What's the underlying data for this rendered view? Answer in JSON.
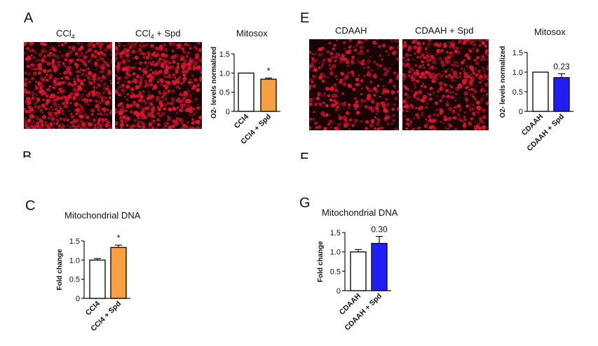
{
  "panels": {
    "A": "A",
    "B": "B",
    "C": "C",
    "E": "E",
    "F": "F",
    "G": "G"
  },
  "images": {
    "A_left_label": "CCl4",
    "A_right_label": "CCl4 + Spd",
    "E_left_label": "CDAAH",
    "E_right_label": "CDAAH + Spd"
  },
  "colors": {
    "orange": "#f7a041",
    "blue": "#1f1ff5",
    "fluor": "#e0162f"
  },
  "chart_data": [
    {
      "id": "A-mitosox",
      "type": "bar",
      "title": "Mitosox",
      "ylabel": "O2- levels normalized",
      "categories": [
        "CCl4",
        "CCl4 + Spd"
      ],
      "values": [
        1.0,
        0.84
      ],
      "errors": [
        0,
        0.03
      ],
      "ylim": [
        0,
        1.5
      ],
      "yticks": [
        0,
        0.5,
        1.0,
        1.5
      ],
      "ytick_labels": [
        "0",
        "0.5",
        "1.0",
        "1.5"
      ],
      "annotation": "*",
      "bar_colors": [
        "#ffffff",
        "#f7a041"
      ]
    },
    {
      "id": "E-mitosox",
      "type": "bar",
      "title": "Mitosox",
      "ylabel": "O2- levels normalized",
      "categories": [
        "CDAAH",
        "CDAAH + Spd"
      ],
      "values": [
        1.0,
        0.86
      ],
      "errors": [
        0,
        0.1
      ],
      "ylim": [
        0,
        1.5
      ],
      "yticks": [
        0,
        0.5,
        1.0,
        1.5
      ],
      "ytick_labels": [
        "0",
        "0.5",
        "1.0",
        "1.5"
      ],
      "annotation": "0.23",
      "bar_colors": [
        "#ffffff",
        "#1f1ff5"
      ]
    },
    {
      "id": "C-mtdna",
      "type": "bar",
      "title": "Mitochondrial DNA",
      "ylabel": "Fold change",
      "categories": [
        "CCl4",
        "CCl4 + Spd"
      ],
      "values": [
        1.0,
        1.33
      ],
      "errors": [
        0.04,
        0.06
      ],
      "ylim": [
        0,
        1.5
      ],
      "yticks": [
        0,
        0.5,
        1.0,
        1.5
      ],
      "ytick_labels": [
        "0",
        "0.5",
        "1.0",
        "1.5"
      ],
      "annotation": "*",
      "bar_colors": [
        "#ffffff",
        "#f7a041"
      ]
    },
    {
      "id": "G-mtdna",
      "type": "bar",
      "title": "Mitochondrial DNA",
      "ylabel": "Fold change",
      "categories": [
        "CDAAH",
        "CDAAH + Spd"
      ],
      "values": [
        1.0,
        1.22
      ],
      "errors": [
        0.06,
        0.18
      ],
      "ylim": [
        0,
        1.5
      ],
      "yticks": [
        0,
        0.5,
        1.0,
        1.5
      ],
      "ytick_labels": [
        "0",
        "0.5",
        "1.0",
        "1.5"
      ],
      "annotation": "0.30",
      "bar_colors": [
        "#ffffff",
        "#1f1ff5"
      ]
    }
  ]
}
